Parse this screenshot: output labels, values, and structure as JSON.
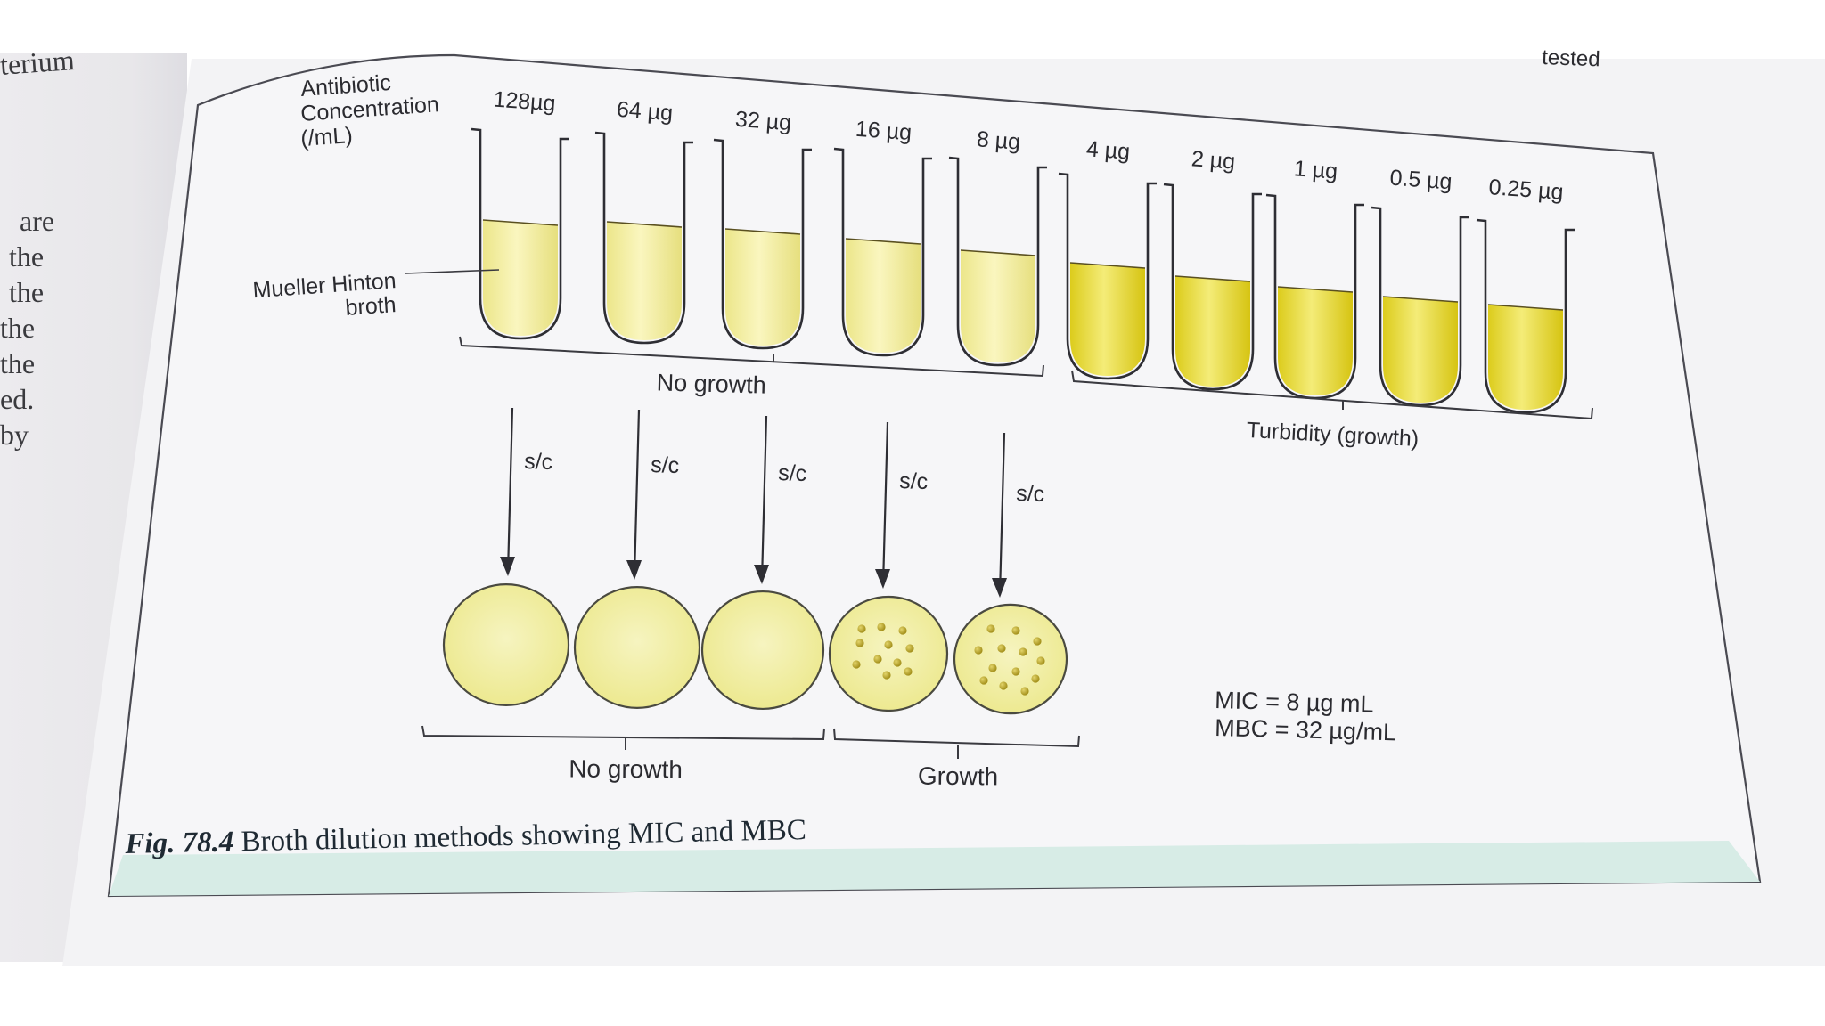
{
  "margin_text": {
    "top_word": "terium",
    "lines": [
      "are",
      "the",
      "the",
      "the",
      "the",
      "ed.",
      "by"
    ]
  },
  "corner_text": "tested",
  "diagram": {
    "concentration_label": [
      "Antibiotic",
      "Concentration",
      "(/mL)"
    ],
    "broth_label": [
      "Mueller Hinton",
      "broth"
    ],
    "tubes": [
      {
        "label": "128µg",
        "growth": false
      },
      {
        "label": "64 µg",
        "growth": false
      },
      {
        "label": "32 µg",
        "growth": false
      },
      {
        "label": "16 µg",
        "growth": false
      },
      {
        "label": "8 µg",
        "growth": false
      },
      {
        "label": "4 µg",
        "growth": true
      },
      {
        "label": "2 µg",
        "growth": true
      },
      {
        "label": "1 µg",
        "growth": true
      },
      {
        "label": "0.5 µg",
        "growth": true
      },
      {
        "label": "0.25 µg",
        "growth": true
      }
    ],
    "tubes_no_growth_label": "No growth",
    "tubes_growth_label": "Turbidity (growth)",
    "subculture_label": "s/c",
    "plates": [
      {
        "colonies": false
      },
      {
        "colonies": false
      },
      {
        "colonies": false
      },
      {
        "colonies": true
      },
      {
        "colonies": true
      }
    ],
    "plates_no_growth_label": "No growth",
    "plates_growth_label": "Growth",
    "results": [
      "MIC = 8 µg mL",
      "MBC = 32 µg/mL"
    ]
  },
  "caption": {
    "fig": "Fig. 78.4",
    "text": "Broth dilution methods showing MIC and MBC"
  },
  "colors": {
    "broth_clear": "#f3ee9a",
    "broth_turbid": "#e8d92a",
    "plate": "#f1ee98",
    "colony": "#b9a422",
    "caption_band": "#d7ece6",
    "page": "#f4f4f6"
  }
}
